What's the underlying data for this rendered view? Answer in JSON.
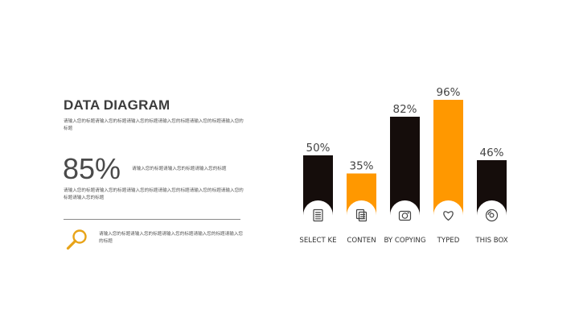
{
  "slide": {
    "title": "DATA DIAGRAM",
    "desc1": "请输入您的标题请输入您的标题请输入您的标题请输入您的标题请输入您的标题请输入您的标题",
    "big_percent": "85%",
    "desc2": "请输入您的标题请输入您的标题请输入您的标题",
    "desc3": "请输入您的标题请输入您的标题请输入您的标题请输入您的标题请输入您的标题请输入您的标题请输入您的标题",
    "desc4": "请输入您的标题请输入您的标题请输入您的标题请输入您的标题请输入您的标题"
  },
  "icons": {
    "magnifier": "magnifier-icon",
    "categories": [
      "document-icon",
      "copy-icon",
      "camera-icon",
      "heart-icon",
      "disc-icon"
    ]
  },
  "colors": {
    "dark": "#150d0b",
    "accent": "#ff9800",
    "icon_accent": "#e8a317"
  },
  "chart_data": {
    "type": "bar",
    "categories": [
      "SELECT KE",
      "CONTEN",
      "BY COPYING",
      "TYPED",
      "THIS BOX"
    ],
    "values": [
      50,
      35,
      82,
      96,
      46
    ],
    "value_labels": [
      "50%",
      "35%",
      "82%",
      "96%",
      "46%"
    ],
    "bar_colors": [
      "#150d0b",
      "#ff9800",
      "#150d0b",
      "#ff9800",
      "#150d0b"
    ],
    "ylim": [
      0,
      100
    ],
    "grid": false,
    "legend": "none"
  }
}
